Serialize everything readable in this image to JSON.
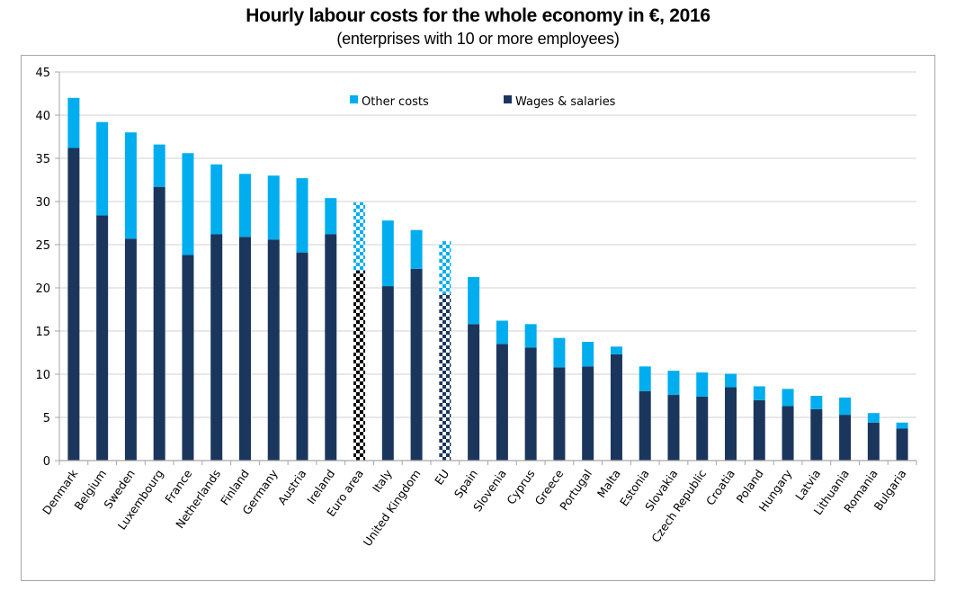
{
  "chart_data": {
    "type": "bar",
    "stacked": true,
    "title": "Hourly labour costs for the whole economy in €, 2016",
    "subtitle": "(enterprises with 10 or more employees)",
    "xlabel": "",
    "ylabel": "",
    "ylim": [
      0,
      45
    ],
    "yticks": [
      "0",
      "5",
      "10",
      "15",
      "20",
      "25",
      "30",
      "35",
      "40",
      "45"
    ],
    "grid": true,
    "legend_position": "top-center",
    "categories": [
      "Denmark",
      "Belgium",
      "Sweden",
      "Luxembourg",
      "France",
      "Netherlands",
      "Finland",
      "Germany",
      "Austria",
      "Ireland",
      "Euro area",
      "Italy",
      "United Kingdom",
      "EU",
      "Spain",
      "Slovenia",
      "Cyprus",
      "Greece",
      "Portugal",
      "Malta",
      "Estonia",
      "Slovakia",
      "Czech Republic",
      "Croatia",
      "Poland",
      "Hungary",
      "Latvia",
      "Lithuania",
      "Romania",
      "Bulgaria"
    ],
    "aggregate_categories": [
      "Euro area",
      "EU"
    ],
    "series": [
      {
        "name": "Wages & salaries",
        "color": "#1b365d",
        "values": [
          36.2,
          28.4,
          25.7,
          31.7,
          23.8,
          26.2,
          25.9,
          25.6,
          24.1,
          26.2,
          22.0,
          20.2,
          22.2,
          19.3,
          15.8,
          13.5,
          13.1,
          10.8,
          10.9,
          12.3,
          8.05,
          7.6,
          7.4,
          8.5,
          7.0,
          6.3,
          5.95,
          5.3,
          4.4,
          3.7
        ]
      },
      {
        "name": "Other costs",
        "color": "#00aeef",
        "values": [
          5.8,
          10.8,
          12.3,
          4.9,
          11.8,
          8.1,
          7.3,
          7.4,
          8.6,
          4.2,
          7.9,
          7.6,
          4.5,
          6.1,
          5.45,
          2.7,
          2.7,
          3.4,
          2.85,
          0.9,
          2.85,
          2.8,
          2.8,
          1.55,
          1.6,
          2.0,
          1.55,
          2.0,
          1.1,
          0.7
        ]
      }
    ],
    "totals": [
      42.0,
      39.2,
      38.0,
      36.6,
      35.6,
      34.3,
      33.2,
      33.0,
      32.7,
      30.4,
      29.9,
      27.8,
      26.7,
      25.4,
      21.25,
      16.2,
      15.8,
      14.2,
      13.75,
      13.2,
      10.9,
      10.4,
      10.2,
      10.05,
      8.6,
      8.3,
      7.5,
      7.3,
      5.5,
      4.4
    ]
  },
  "legend": [
    {
      "label": "Other costs",
      "color": "#00aeef"
    },
    {
      "label": "Wages & salaries",
      "color": "#1b365d"
    }
  ],
  "colors": {
    "gridline": "#d9d9d9",
    "axis": "#a6a6a6",
    "euro_area_wages_pattern": "#000000",
    "eu_wages_pattern": "#1b365d",
    "aggregate_other_pattern": "#00aeef"
  }
}
